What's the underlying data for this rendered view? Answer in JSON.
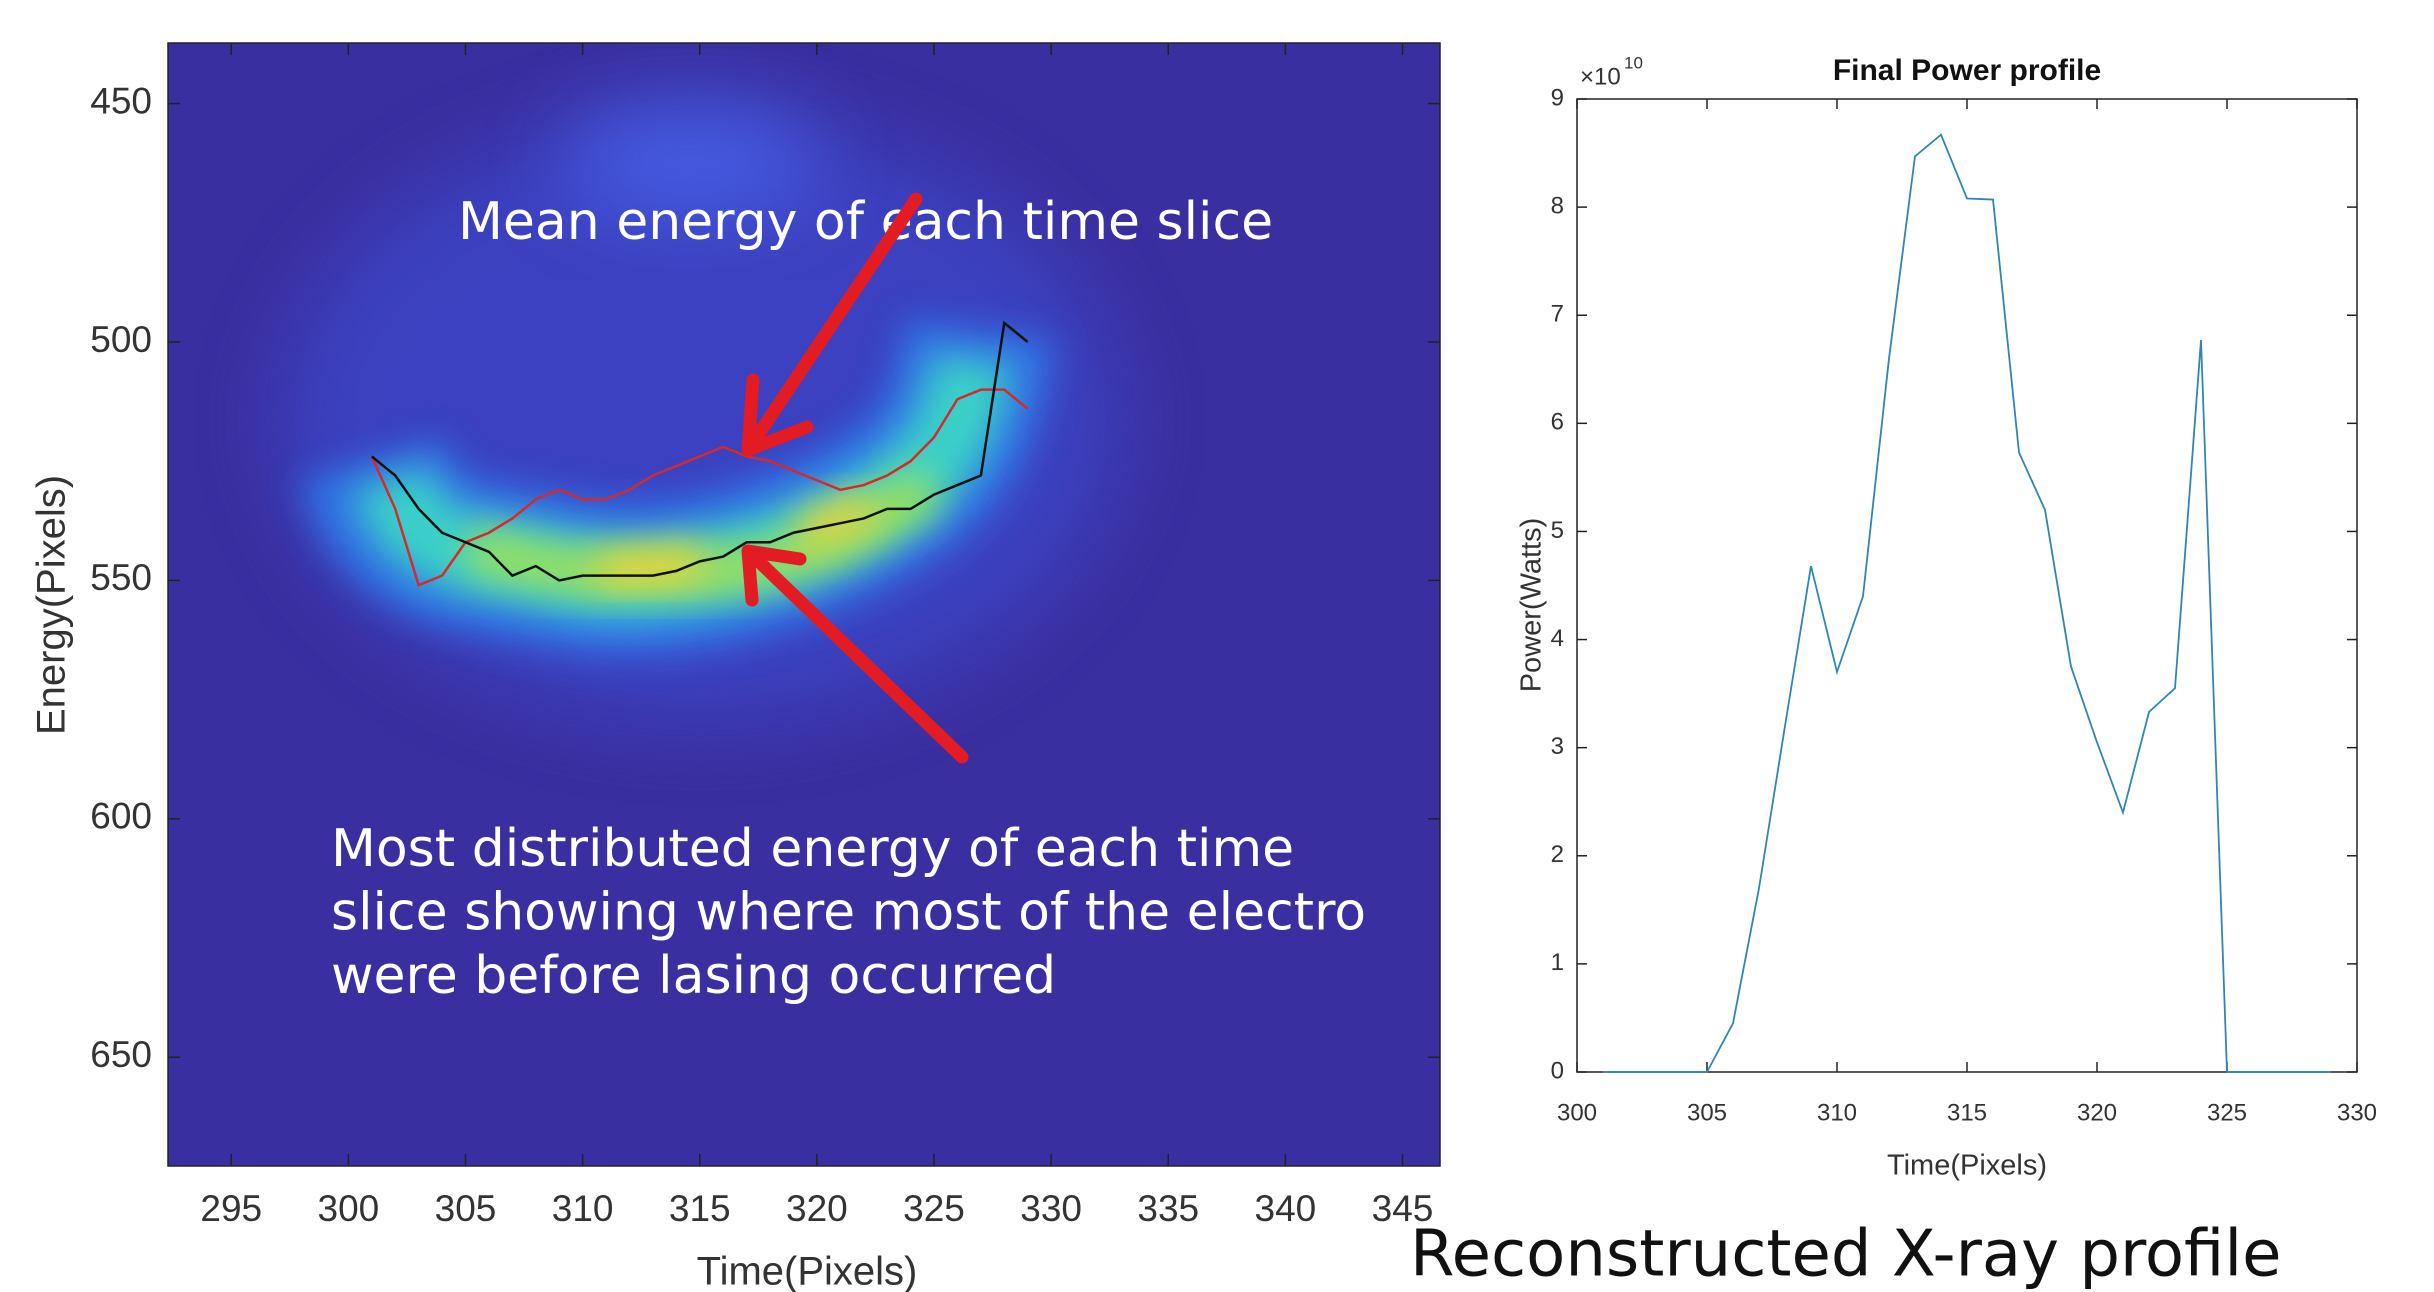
{
  "chart_data": [
    {
      "type": "line",
      "x_label": "Time(Pixels)",
      "y_label": "Energy(Pixels)",
      "x": [
        301,
        302,
        303,
        304,
        305,
        306,
        307,
        308,
        309,
        310,
        311,
        312,
        313,
        314,
        315,
        316,
        317,
        318,
        319,
        320,
        321,
        322,
        323,
        324,
        325,
        326,
        327,
        328,
        329
      ],
      "series": [
        {
          "color": "#d42a2a",
          "values": [
            524,
            535,
            551,
            549,
            542,
            540,
            537,
            533,
            531,
            533,
            533,
            531,
            528,
            526,
            524,
            522,
            524,
            525,
            527,
            529,
            531,
            530,
            528,
            525,
            520,
            512,
            510,
            510,
            514
          ]
        },
        {
          "color": "#111111",
          "values": [
            524,
            528,
            535,
            540,
            542,
            544,
            549,
            547,
            550,
            549,
            549,
            549,
            549,
            548,
            546,
            545,
            542,
            542,
            540,
            539,
            538,
            537,
            535,
            535,
            532,
            530,
            528,
            496,
            500
          ]
        }
      ],
      "xlim": [
        292.3,
        346.6
      ],
      "xticks": [
        295,
        300,
        305,
        310,
        315,
        320,
        325,
        330,
        335,
        340,
        345
      ],
      "ylim": [
        672.8,
        437.3
      ],
      "yticks": [
        450,
        500,
        550,
        600,
        650
      ],
      "annotations": [
        {
          "lines": [
            "Mean energy of each time slice"
          ]
        },
        {
          "lines": [
            "Most distributed energy of each time",
            "slice showing where most of the electro",
            "were before lasing occurred"
          ]
        }
      ]
    },
    {
      "type": "line",
      "title": "Final Power profile",
      "x_label": "Time(Pixels)",
      "y_label": "Power(Watts)",
      "y_multiplier": "×10",
      "y_multiplier_exponent": "10",
      "x": [
        301,
        302,
        303,
        304,
        305,
        306,
        307,
        308,
        309,
        310,
        311,
        312,
        313,
        314,
        315,
        316,
        317,
        318,
        319,
        320,
        321,
        322,
        323,
        324,
        325,
        326,
        327,
        328,
        329
      ],
      "series": [
        {
          "color": "#2e86b3",
          "values": [
            0,
            0,
            0,
            0,
            0,
            0.45,
            1.7,
            3.2,
            4.68,
            3.7,
            4.4,
            6.6,
            8.47,
            8.67,
            8.08,
            8.07,
            5.73,
            5.2,
            3.75,
            3.05,
            2.4,
            3.33,
            3.55,
            6.77,
            0,
            0,
            0,
            0,
            0
          ]
        }
      ],
      "xlim": [
        300,
        330
      ],
      "xticks": [
        300,
        305,
        310,
        315,
        320,
        325,
        330
      ],
      "ylim": [
        0,
        9
      ],
      "yticks": [
        0,
        1,
        2,
        3,
        4,
        5,
        6,
        7,
        8,
        9
      ]
    }
  ],
  "caption": "Reconstructed X-ray profile"
}
